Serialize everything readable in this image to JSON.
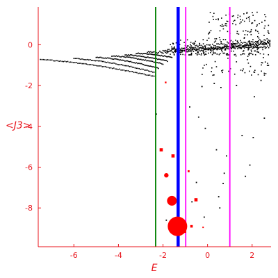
{
  "chart_data": {
    "type": "scatter",
    "title": "",
    "xlabel": "E",
    "ylabel": "<J3>",
    "xlim": [
      -7.6,
      2.85
    ],
    "ylim": [
      -9.9,
      1.85
    ],
    "xticks": [
      -6,
      -4,
      -2,
      0,
      2
    ],
    "yticks": [
      0,
      -2,
      -4,
      -6,
      -8
    ],
    "grid": false,
    "colors": {
      "axis": "#e8141c",
      "points": "#000000",
      "highlight": "#ff0000",
      "green_line": "#008000",
      "blue_line": "#0000ff",
      "magenta_line": "#ff00ff"
    },
    "vertical_lines": [
      {
        "x": -2.33,
        "color": "#008000",
        "width": 1.8
      },
      {
        "x": -1.32,
        "color": "#0000ff",
        "width": 4.5
      },
      {
        "x": -0.98,
        "color": "#ff00ff",
        "width": 1.8
      },
      {
        "x": 1.0,
        "color": "#ff00ff",
        "width": 1.8
      }
    ],
    "bands": [
      {
        "x0": -7.5,
        "y0": -0.74,
        "x1": -2.4,
        "y1": -1.55,
        "n": 80,
        "noise": 0.02
      },
      {
        "x0": -6.0,
        "y0": -0.68,
        "x1": -2.4,
        "y1": -1.35,
        "n": 60,
        "noise": 0.02
      },
      {
        "x0": -5.0,
        "y0": -0.62,
        "x1": -2.2,
        "y1": -1.15,
        "n": 55,
        "noise": 0.02
      },
      {
        "x0": -4.3,
        "y0": -0.55,
        "x1": -2.0,
        "y1": -0.95,
        "n": 45,
        "noise": 0.02
      },
      {
        "x0": -3.7,
        "y0": -0.5,
        "x1": -1.8,
        "y1": -0.8,
        "n": 40,
        "noise": 0.02
      },
      {
        "x0": -3.2,
        "y0": -0.42,
        "x1": -1.6,
        "y1": -0.62,
        "n": 35,
        "noise": 0.02
      },
      {
        "x0": -2.7,
        "y0": -0.38,
        "x1": 2.8,
        "y1": 0.05,
        "n": 110,
        "noise": 0.06
      },
      {
        "x0": -2.0,
        "y0": -0.28,
        "x1": 2.8,
        "y1": 0.12,
        "n": 90,
        "noise": 0.05
      },
      {
        "x0": -1.6,
        "y0": -0.2,
        "x1": 2.8,
        "y1": -0.1,
        "n": 80,
        "noise": 0.05
      },
      {
        "x0": -1.0,
        "y0": -0.1,
        "x1": 2.8,
        "y1": 0.25,
        "n": 60,
        "noise": 0.06
      }
    ],
    "scatter_clouds": [
      {
        "x0": 0.0,
        "x1": 2.8,
        "y0": -0.5,
        "y1": 1.6,
        "n": 220
      },
      {
        "x0": -1.8,
        "x1": 0.0,
        "y0": -0.5,
        "y1": 0.25,
        "n": 80
      },
      {
        "x0": -0.5,
        "x1": 2.8,
        "y0": -1.5,
        "y1": -0.5,
        "n": 45
      }
    ],
    "black_points": [
      {
        "x": -2.3,
        "y": -3.4
      },
      {
        "x": -0.25,
        "y": -2.05
      },
      {
        "x": 0.6,
        "y": -2.1
      },
      {
        "x": 1.3,
        "y": -2.0
      },
      {
        "x": 2.4,
        "y": -1.75
      },
      {
        "x": -0.8,
        "y": -3.05
      },
      {
        "x": -0.4,
        "y": -3.55
      },
      {
        "x": -0.1,
        "y": -4.1
      },
      {
        "x": 1.55,
        "y": -4.45
      },
      {
        "x": 2.05,
        "y": -4.55
      },
      {
        "x": 2.55,
        "y": -3.6
      },
      {
        "x": 0.4,
        "y": -5.15
      },
      {
        "x": 0.85,
        "y": -5.45
      },
      {
        "x": 1.9,
        "y": -5.9
      },
      {
        "x": -0.85,
        "y": -6.2
      },
      {
        "x": 0.75,
        "y": -6.3
      },
      {
        "x": 1.7,
        "y": -6.45
      },
      {
        "x": -0.5,
        "y": -6.75
      },
      {
        "x": 0.7,
        "y": -6.8
      },
      {
        "x": 0.5,
        "y": -7.45
      },
      {
        "x": -0.7,
        "y": -7.7
      },
      {
        "x": 0.55,
        "y": -8.0
      },
      {
        "x": -0.15,
        "y": -8.45
      },
      {
        "x": -1.85,
        "y": -8.6
      },
      {
        "x": 2.1,
        "y": -2.55
      },
      {
        "x": 0.3,
        "y": -1.9
      }
    ],
    "red_points": [
      {
        "x": -1.35,
        "y": -8.9,
        "r": 14
      },
      {
        "x": -1.6,
        "y": -7.65,
        "r": 7
      },
      {
        "x": -1.85,
        "y": -6.4,
        "r": 3.2
      },
      {
        "x": -1.55,
        "y": -5.45,
        "r": 2.3
      },
      {
        "x": -2.08,
        "y": -5.15,
        "r": 2.3
      },
      {
        "x": -0.52,
        "y": -7.6,
        "r": 2.3
      },
      {
        "x": -0.72,
        "y": -8.9,
        "r": 1.8
      },
      {
        "x": -1.02,
        "y": -9.15,
        "r": 2
      },
      {
        "x": -0.85,
        "y": -6.2,
        "r": 1.4
      },
      {
        "x": -0.2,
        "y": -8.95,
        "r": 1
      },
      {
        "x": -1.88,
        "y": -1.85,
        "r": 1.2
      }
    ]
  }
}
